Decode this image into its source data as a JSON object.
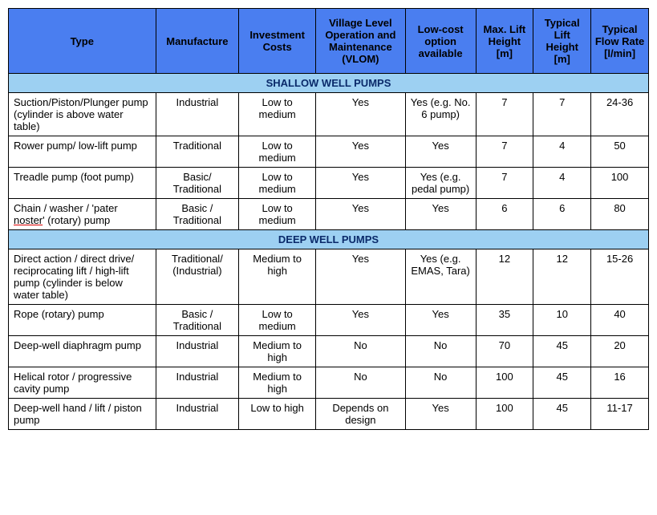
{
  "colors": {
    "header_bg": "#4a7ef0",
    "section_bg": "#9dd0f2",
    "section_text": "#0a2a6a",
    "border": "#000000",
    "background": "#ffffff"
  },
  "typography": {
    "font_family": "Trebuchet MS, Verdana, sans-serif",
    "header_fontsize": 13,
    "cell_fontsize": 13,
    "header_weight": "bold"
  },
  "columns": [
    {
      "key": "type",
      "label": "Type",
      "width_pct": 23,
      "align": "left"
    },
    {
      "key": "manufacture",
      "label": "Manufacture",
      "width_pct": 13,
      "align": "center"
    },
    {
      "key": "investment",
      "label": "Investment Costs",
      "width_pct": 12,
      "align": "center"
    },
    {
      "key": "vlom",
      "label": "Village Level Operation and Maintenance (VLOM)",
      "width_pct": 14,
      "align": "center"
    },
    {
      "key": "lowcost",
      "label": "Low-cost option available",
      "width_pct": 11,
      "align": "center"
    },
    {
      "key": "maxlift",
      "label": "Max. Lift Height [m]",
      "width_pct": 9,
      "align": "center"
    },
    {
      "key": "typlift",
      "label": "Typical Lift Height [m]",
      "width_pct": 9,
      "align": "center"
    },
    {
      "key": "flow",
      "label": "Typical Flow Rate [l/min]",
      "width_pct": 9,
      "align": "center"
    }
  ],
  "sections": [
    {
      "title": "SHALLOW WELL PUMPS",
      "rows": [
        {
          "type": "Suction/Piston/Plunger pump (cylinder is above water table)",
          "manufacture": "Industrial",
          "investment": "Low to medium",
          "vlom": "Yes",
          "lowcost": "Yes (e.g. No. 6 pump)",
          "maxlift": "7",
          "typlift": "7",
          "flow": "24-36"
        },
        {
          "type": "Rower pump/ low-lift pump",
          "manufacture": "Traditional",
          "investment": "Low to medium",
          "vlom": "Yes",
          "lowcost": "Yes",
          "maxlift": "7",
          "typlift": "4",
          "flow": "50"
        },
        {
          "type": "Treadle pump (foot pump)",
          "manufacture": "Basic/ Traditional",
          "investment": "Low to medium",
          "vlom": "Yes",
          "lowcost": "Yes (e.g. pedal pump)",
          "maxlift": "7",
          "typlift": "4",
          "flow": "100"
        },
        {
          "type": "Chain / washer / 'pater noster' (rotary) pump",
          "manufacture": "Basic / Traditional",
          "investment": "Low to medium",
          "vlom": "Yes",
          "lowcost": "Yes",
          "maxlift": "6",
          "typlift": "6",
          "flow": "80",
          "noster": true
        }
      ]
    },
    {
      "title": "DEEP WELL PUMPS",
      "rows": [
        {
          "type": "Direct action / direct drive/ reciprocating lift / high-lift pump (cylinder is below water table)",
          "manufacture": "Traditional/ (Industrial)",
          "investment": "Medium to high",
          "vlom": "Yes",
          "lowcost": "Yes (e.g. EMAS, Tara)",
          "maxlift": "12",
          "typlift": "12",
          "flow": "15-26"
        },
        {
          "type": "Rope (rotary) pump",
          "manufacture": "Basic / Traditional",
          "investment": "Low to medium",
          "vlom": "Yes",
          "lowcost": "Yes",
          "maxlift": "35",
          "typlift": "10",
          "flow": "40"
        },
        {
          "type": "Deep-well diaphragm pump",
          "manufacture": "Industrial",
          "investment": "Medium to high",
          "vlom": "No",
          "lowcost": "No",
          "maxlift": "70",
          "typlift": "45",
          "flow": "20"
        },
        {
          "type": "Helical rotor / progressive cavity pump",
          "manufacture": "Industrial",
          "investment": "Medium to high",
          "vlom": "No",
          "lowcost": "No",
          "maxlift": "100",
          "typlift": "45",
          "flow": "16"
        },
        {
          "type": "Deep-well hand / lift / piston pump",
          "manufacture": "Industrial",
          "investment": "Low to high",
          "vlom": "Depends on design",
          "lowcost": "Yes",
          "maxlift": "100",
          "typlift": "45",
          "flow": "11-17"
        }
      ]
    }
  ]
}
